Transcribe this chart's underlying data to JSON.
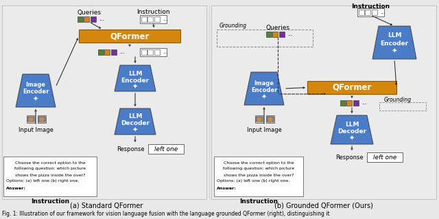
{
  "background_color": "#e8e8e8",
  "white": "#ffffff",
  "blue": "#4a7cc7",
  "orange": "#d4870c",
  "green": "#548235",
  "purple": "#7030a0",
  "orange2": "#d4870c",
  "black": "#000000",
  "caption_a": "(a) Standard QFormer",
  "caption_b": "(b) Grounded QFormer (Ours)",
  "fig_caption": "Fig. 1: Illustration of our framework for vision language fusion with the language grounded QFormer (right), distinguishing it"
}
